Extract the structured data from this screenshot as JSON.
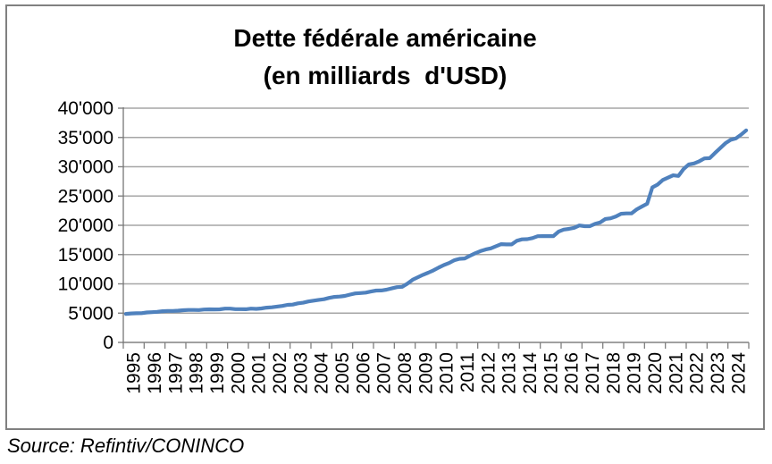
{
  "title": {
    "line1": "Dette fédérale américaine",
    "line2": "(en milliards  d'USD)"
  },
  "source": "Source: Refintiv/CONINCO",
  "colors": {
    "line": "#4F81BD",
    "gridline": "#A6A6A6",
    "axis": "#808080",
    "border": "#808080",
    "text": "#000000"
  },
  "chart_data": {
    "type": "line",
    "title": "Dette fédérale américaine (en milliards d'USD)",
    "xlabel": "",
    "ylabel": "",
    "ylim": [
      0,
      40000
    ],
    "ytick_interval": 5000,
    "grid": true,
    "legend": false,
    "line_color": "#4F81BD",
    "yticks": [
      {
        "value": 0,
        "label": "0"
      },
      {
        "value": 5000,
        "label": "5'000"
      },
      {
        "value": 10000,
        "label": "10'000"
      },
      {
        "value": 15000,
        "label": "15'000"
      },
      {
        "value": 20000,
        "label": "20'000"
      },
      {
        "value": 25000,
        "label": "25'000"
      },
      {
        "value": 30000,
        "label": "30'000"
      },
      {
        "value": 35000,
        "label": "35'000"
      },
      {
        "value": 40000,
        "label": "40'000"
      }
    ],
    "categories": [
      "1995",
      "1996",
      "1997",
      "1998",
      "1999",
      "2000",
      "2001",
      "2002",
      "2003",
      "2004",
      "2005",
      "2006",
      "2007",
      "2008",
      "2009",
      "2010",
      "2011",
      "2012",
      "2013",
      "2014",
      "2015",
      "2016",
      "2017",
      "2018",
      "2019",
      "2020",
      "2021",
      "2022",
      "2023",
      "2024"
    ],
    "x_resolution": "quarterly",
    "series": [
      {
        "name": "Dette fédérale américaine (milliards USD)",
        "values_by_year": [
          [
            4864,
            4951,
            4974,
            4989
          ],
          [
            5118,
            5161,
            5225,
            5323
          ],
          [
            5380,
            5376,
            5413,
            5502
          ],
          [
            5542,
            5547,
            5526,
            5614
          ],
          [
            5652,
            5639,
            5656,
            5776
          ],
          [
            5773,
            5686,
            5674,
            5662
          ],
          [
            5774,
            5726,
            5807,
            5943
          ],
          [
            6006,
            6126,
            6228,
            6406
          ],
          [
            6460,
            6670,
            6783,
            6998
          ],
          [
            7131,
            7274,
            7379,
            7596
          ],
          [
            7776,
            7837,
            7933,
            8170
          ],
          [
            8371,
            8420,
            8507,
            8680
          ],
          [
            8849,
            8868,
            9008,
            9229
          ],
          [
            9438,
            9492,
            10025,
            10700
          ],
          [
            11127,
            11545,
            11910,
            12311
          ],
          [
            12773,
            13202,
            13562,
            14025
          ],
          [
            14270,
            14343,
            14790,
            15223
          ],
          [
            15582,
            15856,
            16066,
            16433
          ],
          [
            16771,
            16738,
            16738,
            17352
          ],
          [
            17601,
            17633,
            17824,
            18141
          ],
          [
            18152,
            18152,
            18151,
            18922
          ],
          [
            19265,
            19382,
            19573,
            19977
          ],
          [
            19846,
            19845,
            20245,
            20493
          ],
          [
            21090,
            21195,
            21516,
            21974
          ],
          [
            22028,
            22023,
            22719,
            23201
          ],
          [
            23687,
            26477,
            26945,
            27748
          ],
          [
            28133,
            28529,
            28429,
            29617
          ],
          [
            30400,
            30569,
            30929,
            31420
          ],
          [
            31459,
            32332,
            33167,
            34001
          ],
          [
            34586,
            34832,
            35465,
            36219
          ]
        ]
      }
    ]
  }
}
